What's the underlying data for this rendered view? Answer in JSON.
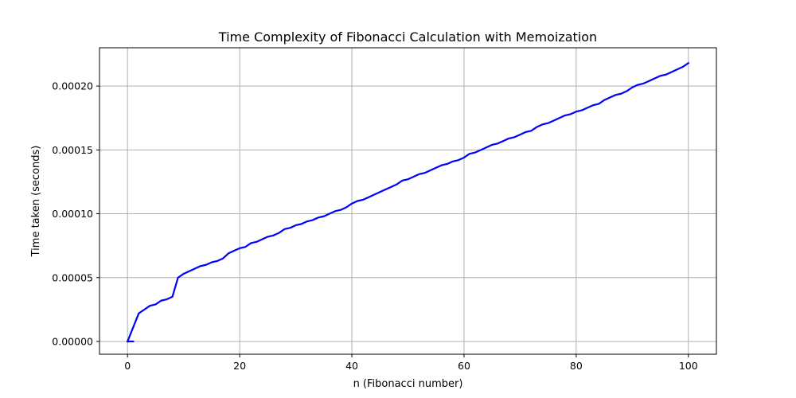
{
  "chart_data": {
    "type": "line",
    "title": "Time Complexity of Fibonacci Calculation with Memoization",
    "xlabel": "n (Fibonacci number)",
    "ylabel": "Time taken (seconds)",
    "xlim": [
      -5,
      105
    ],
    "ylim": [
      -1e-05,
      0.00023
    ],
    "xticks": [
      0,
      20,
      40,
      60,
      80,
      100
    ],
    "yticks": [
      0,
      5e-05,
      0.0001,
      0.00015,
      0.0002
    ],
    "xtick_labels": [
      "0",
      "20",
      "40",
      "60",
      "80",
      "100"
    ],
    "ytick_labels": [
      "0.00000",
      "0.00005",
      "0.00010",
      "0.00015",
      "0.00020"
    ],
    "grid": true,
    "line_color": "#0000ff",
    "series": [
      {
        "x": [
          0,
          1,
          2,
          3,
          4,
          5,
          6,
          7,
          8,
          9,
          10,
          11,
          12,
          13,
          14,
          15,
          16,
          17,
          18,
          19,
          20,
          21,
          22,
          23,
          24,
          25,
          26,
          27,
          28,
          29,
          30,
          31,
          32,
          33,
          34,
          35,
          36,
          37,
          38,
          39,
          40,
          41,
          42,
          43,
          44,
          45,
          46,
          47,
          48,
          49,
          50,
          51,
          52,
          53,
          54,
          55,
          56,
          57,
          58,
          59,
          60,
          61,
          62,
          63,
          64,
          65,
          66,
          67,
          68,
          69,
          70,
          71,
          72,
          73,
          74,
          75,
          76,
          77,
          78,
          79,
          80,
          81,
          82,
          83,
          84,
          85,
          86,
          87,
          88,
          89,
          90,
          91,
          92,
          93,
          94,
          95,
          96,
          97,
          98,
          99,
          100
        ],
        "values": [
          0.0,
          1.1e-05,
          2.2e-05,
          2.5e-05,
          2.8e-05,
          2.9e-05,
          3.2e-05,
          3.3e-05,
          3.5e-05,
          5e-05,
          5.3e-05,
          5.5e-05,
          5.7e-05,
          5.9e-05,
          6e-05,
          6.2e-05,
          6.3e-05,
          6.5e-05,
          6.9e-05,
          7.1e-05,
          7.3e-05,
          7.4e-05,
          7.7e-05,
          7.8e-05,
          8e-05,
          8.2e-05,
          8.3e-05,
          8.5e-05,
          8.8e-05,
          8.9e-05,
          9.1e-05,
          9.2e-05,
          9.4e-05,
          9.5e-05,
          9.7e-05,
          9.8e-05,
          0.0001,
          0.000102,
          0.000103,
          0.000105,
          0.000108,
          0.00011,
          0.000111,
          0.000113,
          0.000115,
          0.000117,
          0.000119,
          0.000121,
          0.000123,
          0.000126,
          0.000127,
          0.000129,
          0.000131,
          0.000132,
          0.000134,
          0.000136,
          0.000138,
          0.000139,
          0.000141,
          0.000142,
          0.000144,
          0.000147,
          0.000148,
          0.00015,
          0.000152,
          0.000154,
          0.000155,
          0.000157,
          0.000159,
          0.00016,
          0.000162,
          0.000164,
          0.000165,
          0.000168,
          0.00017,
          0.000171,
          0.000173,
          0.000175,
          0.000177,
          0.000178,
          0.00018,
          0.000181,
          0.000183,
          0.000185,
          0.000186,
          0.000189,
          0.000191,
          0.000193,
          0.000194,
          0.000196,
          0.000199,
          0.000201,
          0.000202,
          0.000204,
          0.000206,
          0.000208,
          0.000209,
          0.000211,
          0.000213,
          0.000215,
          0.000218
        ]
      }
    ],
    "extra_segment": {
      "x": [
        0,
        1
      ],
      "values": [
        0.0,
        0.0
      ]
    }
  }
}
